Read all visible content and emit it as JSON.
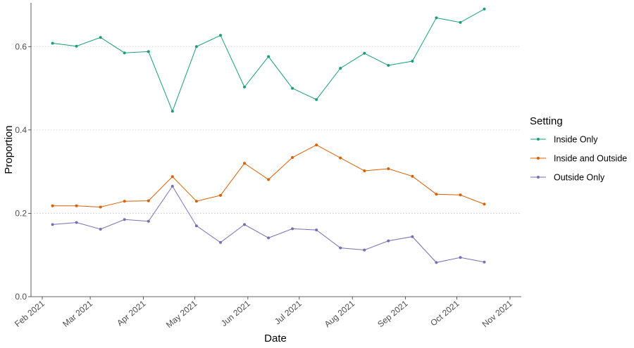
{
  "chart_data": {
    "type": "line",
    "xlabel": "Date",
    "ylabel": "Proportion",
    "x_ticks": [
      "Feb 2021",
      "Mar 2021",
      "Apr 2021",
      "May 2021",
      "Jun 2021",
      "Jul 2021",
      "Aug 2021",
      "Sep 2021",
      "Oct 2021",
      "Nov 2021"
    ],
    "x_range": [
      "2021-02-01",
      "2021-11-01"
    ],
    "y_ticks": [
      "0.0",
      "0.2",
      "0.4",
      "0.6"
    ],
    "ylim": [
      0,
      0.7
    ],
    "grid": "horizontal-dotted",
    "legend": {
      "title": "Setting",
      "placement": "right"
    },
    "x": [
      "2021-02-07",
      "2021-02-21",
      "2021-03-07",
      "2021-03-21",
      "2021-04-04",
      "2021-04-18",
      "2021-05-02",
      "2021-05-16",
      "2021-05-30",
      "2021-06-13",
      "2021-06-27",
      "2021-07-11",
      "2021-07-25",
      "2021-08-08",
      "2021-08-22",
      "2021-09-05",
      "2021-09-19",
      "2021-10-03",
      "2021-10-17"
    ],
    "series": [
      {
        "name": "Inside Only",
        "color": "#1b9e77",
        "values": [
          0.608,
          0.601,
          0.622,
          0.585,
          0.588,
          0.445,
          0.6,
          0.627,
          0.503,
          0.576,
          0.5,
          0.473,
          0.548,
          0.584,
          0.555,
          0.565,
          0.669,
          0.658,
          0.69
        ]
      },
      {
        "name": "Inside and Outside",
        "color": "#d95f02",
        "values": [
          0.218,
          0.218,
          0.215,
          0.229,
          0.23,
          0.288,
          0.229,
          0.243,
          0.32,
          0.281,
          0.334,
          0.364,
          0.333,
          0.302,
          0.307,
          0.289,
          0.246,
          0.244,
          0.222
        ]
      },
      {
        "name": "Outside Only",
        "color": "#7570b3",
        "values": [
          0.173,
          0.178,
          0.162,
          0.185,
          0.181,
          0.265,
          0.17,
          0.13,
          0.173,
          0.141,
          0.163,
          0.16,
          0.117,
          0.112,
          0.134,
          0.144,
          0.082,
          0.094,
          0.083
        ]
      }
    ]
  }
}
